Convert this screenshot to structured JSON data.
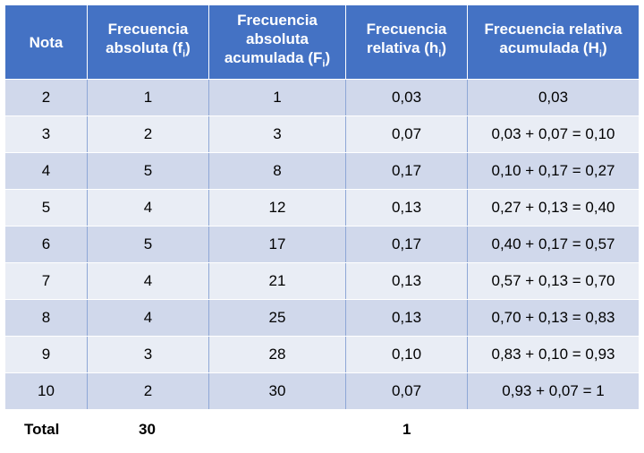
{
  "table": {
    "headers": [
      {
        "text": "Nota",
        "sub": "",
        "tail": ""
      },
      {
        "text": "Frecuencia absoluta (f",
        "sub": "i",
        "tail": ")"
      },
      {
        "text": "Frecuencia absoluta acumulada (F",
        "sub": "i",
        "tail": ")"
      },
      {
        "text": "Frecuencia relativa (h",
        "sub": "i",
        "tail": ")"
      },
      {
        "text": "Frecuencia relativa acumulada (H",
        "sub": "i",
        "tail": ")"
      }
    ],
    "rows": [
      [
        "2",
        "1",
        "1",
        "0,03",
        "0,03"
      ],
      [
        "3",
        "2",
        "3",
        "0,07",
        "0,03 + 0,07 = 0,10"
      ],
      [
        "4",
        "5",
        "8",
        "0,17",
        "0,10 + 0,17 = 0,27"
      ],
      [
        "5",
        "4",
        "12",
        "0,13",
        "0,27 + 0,13 = 0,40"
      ],
      [
        "6",
        "5",
        "17",
        "0,17",
        "0,40 + 0,17 = 0,57"
      ],
      [
        "7",
        "4",
        "21",
        "0,13",
        "0,57 + 0,13 = 0,70"
      ],
      [
        "8",
        "4",
        "25",
        "0,13",
        "0,70 + 0,13 = 0,83"
      ],
      [
        "9",
        "3",
        "28",
        "0,10",
        "0,83 + 0,10 = 0,93"
      ],
      [
        "10",
        "2",
        "30",
        "0,07",
        "0,93 + 0,07 = 1"
      ]
    ]
  },
  "totals": {
    "label": "Total",
    "absolute": "30",
    "relative": "1"
  }
}
